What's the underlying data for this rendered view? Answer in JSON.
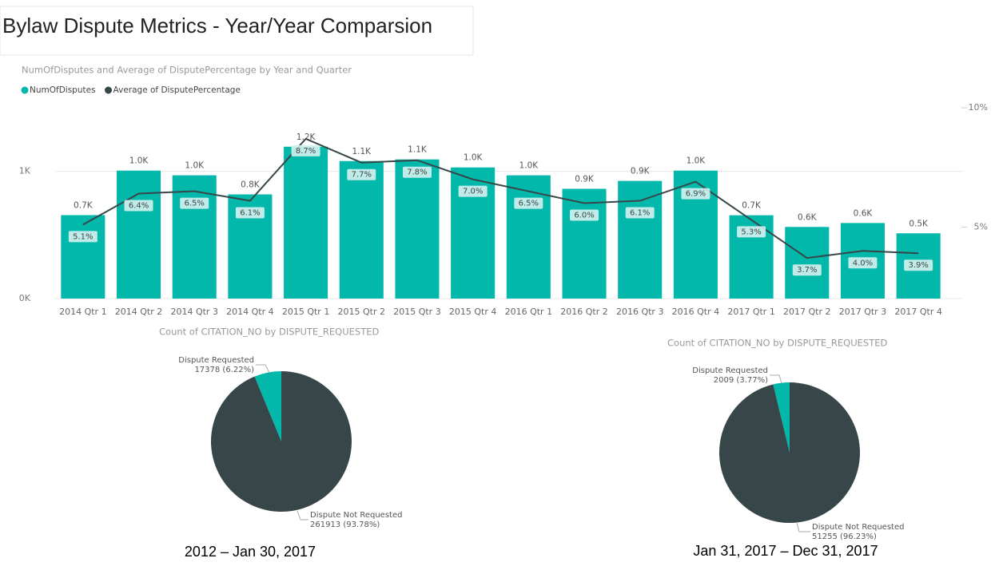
{
  "title": "Bylaw Dispute Metrics - Year/Year Comparsion",
  "chart_data": [
    {
      "type": "combo",
      "title": "NumOfDisputes and Average of DisputePercentage by Year and Quarter",
      "categories": [
        "2014 Qtr 1",
        "2014 Qtr 2",
        "2014 Qtr 3",
        "2014 Qtr 4",
        "2015 Qtr 1",
        "2015 Qtr 2",
        "2015 Qtr 3",
        "2015 Qtr 4",
        "2016 Qtr 1",
        "2016 Qtr 2",
        "2016 Qtr 3",
        "2016 Qtr 4",
        "2017 Qtr 1",
        "2017 Qtr 2",
        "2017 Qtr 3",
        "2017 Qtr 4"
      ],
      "series": [
        {
          "name": "NumOfDisputes",
          "type": "bar",
          "color": "#01b8aa",
          "values": [
            656,
            1006,
            969,
            819,
            1194,
            1081,
            1094,
            1031,
            969,
            863,
            925,
            1006,
            655,
            563,
            594,
            513
          ],
          "value_labels": [
            "0.7K",
            "1.0K",
            "1.0K",
            "0.8K",
            "1.2K",
            "1.1K",
            "1.1K",
            "1.0K",
            "1.0K",
            "0.9K",
            "0.9K",
            "1.0K",
            "0.7K",
            "0.6K",
            "0.6K",
            "0.5K"
          ]
        },
        {
          "name": "Average of DisputePercentage",
          "type": "line",
          "color": "#374649",
          "axis": "y2",
          "values": [
            5.1,
            6.4,
            6.5,
            6.1,
            8.7,
            7.7,
            7.8,
            7.0,
            6.5,
            6.0,
            6.1,
            6.9,
            5.3,
            3.7,
            4.0,
            3.9
          ],
          "value_labels": [
            "5.1%",
            "6.4%",
            "6.5%",
            "6.1%",
            "8.7%",
            "7.7%",
            "7.8%",
            "7.0%",
            "6.5%",
            "6.0%",
            "6.1%",
            "6.9%",
            "5.3%",
            "3.7%",
            "4.0%",
            "3.9%"
          ]
        }
      ],
      "ylim": [
        0,
        1500
      ],
      "yticks": [
        {
          "value": 0,
          "label": "0K"
        },
        {
          "value": 1000,
          "label": "1K"
        }
      ],
      "y2lim": [
        2,
        10
      ],
      "y2ticks": [
        {
          "value": 5,
          "label": "5%"
        },
        {
          "value": 10,
          "label": "10%"
        }
      ],
      "grid": true,
      "legend": "top-left"
    },
    {
      "type": "pie",
      "title": "Count of CITATION_NO by DISPUTE_REQUESTED",
      "categories": [
        "Dispute Requested",
        "Dispute Not Requested"
      ],
      "values": [
        17378,
        261913
      ],
      "value_labels": [
        "17378 (6.22%)",
        "261913 (93.78%)"
      ],
      "colors": [
        "#01b8aa",
        "#374649"
      ],
      "caption": "2012 – Jan 30, 2017"
    },
    {
      "type": "pie",
      "title": "Count of CITATION_NO by DISPUTE_REQUESTED",
      "categories": [
        "Dispute Requested",
        "Dispute Not Requested"
      ],
      "values": [
        2009,
        51255
      ],
      "value_labels": [
        "2009 (3.77%)",
        "51255 (96.23%)"
      ],
      "colors": [
        "#01b8aa",
        "#374649"
      ],
      "caption": "Jan 31, 2017 – Dec 31, 2017"
    }
  ]
}
